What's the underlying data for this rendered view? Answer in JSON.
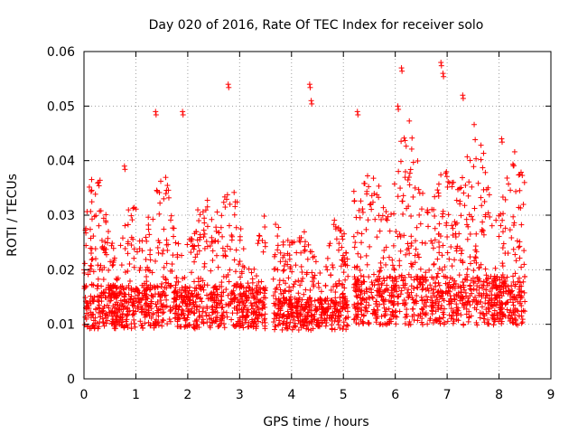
{
  "chart_data": {
    "type": "scatter",
    "title": "Day 020 of 2016, Rate Of TEC Index for receiver solo",
    "xlabel": "GPS time / hours",
    "ylabel": "ROTI / TECUs",
    "xlim": [
      0,
      9
    ],
    "ylim": [
      0,
      0.06
    ],
    "xticks": [
      "0",
      "1",
      "2",
      "3",
      "4",
      "5",
      "6",
      "7",
      "8",
      "9"
    ],
    "yticks": [
      "0",
      "0.01",
      "0.02",
      "0.03",
      "0.04",
      "0.05",
      "0.06"
    ],
    "grid": true,
    "marker": "+",
    "color": "#ff0000",
    "segments": [
      {
        "x_start": 0.0,
        "x_end": 3.5,
        "base": 0.012,
        "spread": 0.008,
        "peak": 0.036
      },
      {
        "x_start": 3.65,
        "x_end": 5.1,
        "base": 0.011,
        "spread": 0.006,
        "peak": 0.03
      },
      {
        "x_start": 5.2,
        "x_end": 8.5,
        "base": 0.013,
        "spread": 0.009,
        "peak": 0.045
      }
    ],
    "notable_points": [
      {
        "x": 2.78,
        "y": 0.054
      },
      {
        "x": 4.35,
        "y": 0.054
      },
      {
        "x": 4.38,
        "y": 0.051
      },
      {
        "x": 6.12,
        "y": 0.057
      },
      {
        "x": 6.88,
        "y": 0.058
      },
      {
        "x": 6.92,
        "y": 0.056
      },
      {
        "x": 6.05,
        "y": 0.05
      },
      {
        "x": 7.3,
        "y": 0.052
      },
      {
        "x": 8.05,
        "y": 0.044
      },
      {
        "x": 1.38,
        "y": 0.049
      },
      {
        "x": 1.9,
        "y": 0.049
      },
      {
        "x": 5.27,
        "y": 0.049
      },
      {
        "x": 0.78,
        "y": 0.039
      },
      {
        "x": 0.28,
        "y": 0.036
      },
      {
        "x": 0.0,
        "y": 0.02
      }
    ]
  }
}
